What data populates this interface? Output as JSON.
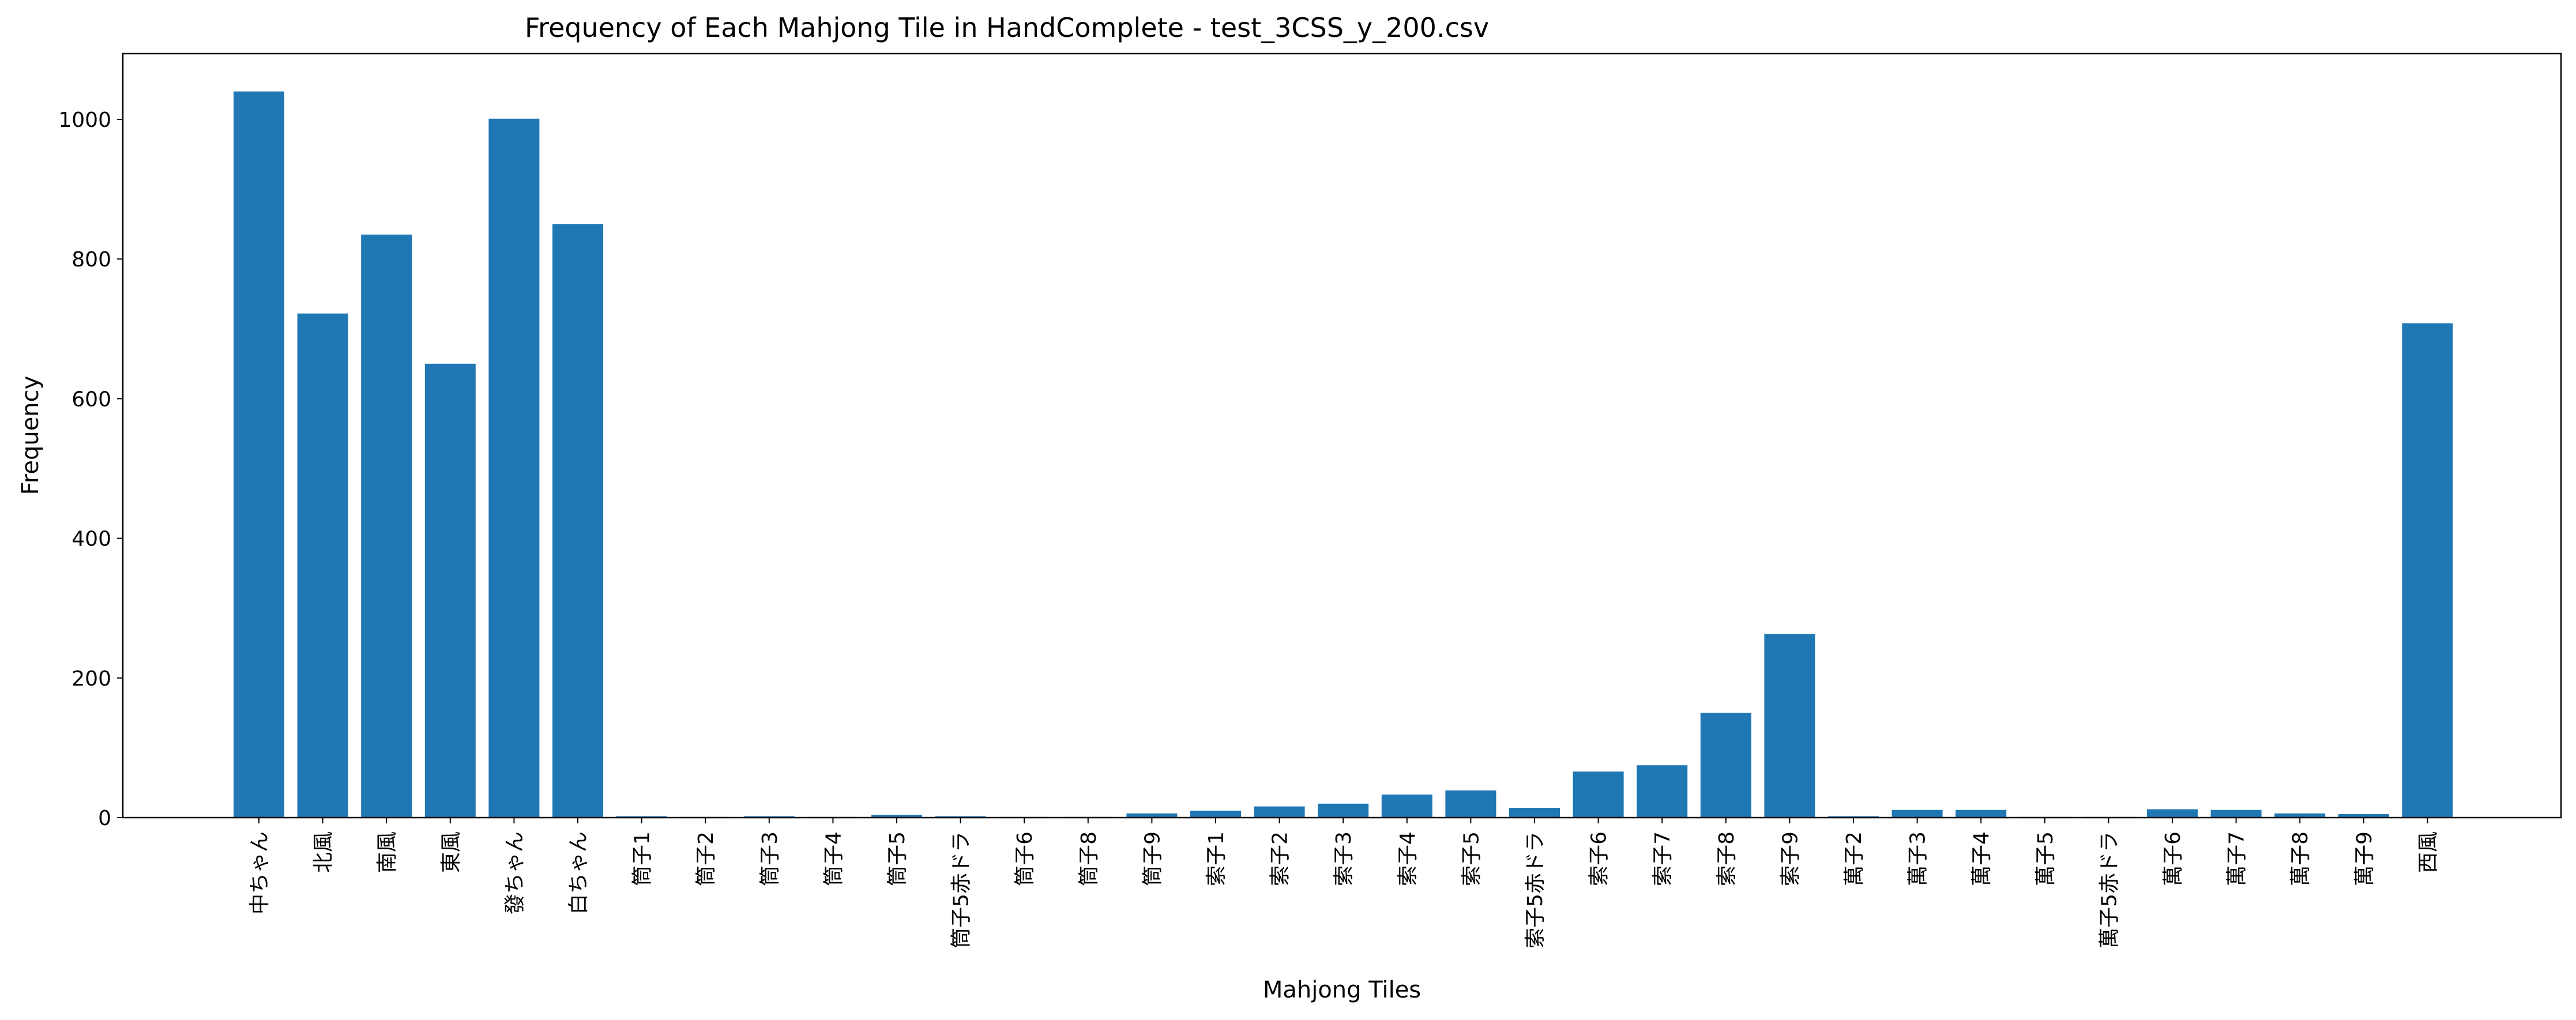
{
  "chart_data": {
    "type": "bar",
    "title": "Frequency of Each Mahjong Tile in HandComplete - test_3CSS_y_200.csv",
    "xlabel": "Mahjong Tiles",
    "ylabel": "Frequency",
    "ylim": [
      0,
      1092
    ],
    "yticks": [
      0,
      200,
      400,
      600,
      800,
      1000
    ],
    "grid": false,
    "legend": "none",
    "bar_color": "#1f77b4",
    "categories": [
      "中ちゃん",
      "北風",
      "南風",
      "東風",
      "發ちゃん",
      "白ちゃん",
      "筒子1",
      "筒子2",
      "筒子3",
      "筒子4",
      "筒子5",
      "筒子5赤ドラ",
      "筒子6",
      "筒子8",
      "筒子9",
      "索子1",
      "索子2",
      "索子3",
      "索子4",
      "索子5",
      "索子5赤ドラ",
      "索子6",
      "索子7",
      "索子8",
      "索子9",
      "萬子2",
      "萬子3",
      "萬子4",
      "萬子5",
      "萬子5赤ドラ",
      "萬子6",
      "萬子7",
      "萬子8",
      "萬子9",
      "西風"
    ],
    "values": [
      1040,
      722,
      835,
      650,
      1001,
      850,
      2,
      1,
      2,
      1,
      4,
      2,
      1,
      1,
      6,
      10,
      16,
      20,
      33,
      39,
      14,
      66,
      75,
      150,
      263,
      2,
      11,
      11,
      1,
      1,
      12,
      11,
      6,
      5,
      708
    ]
  }
}
